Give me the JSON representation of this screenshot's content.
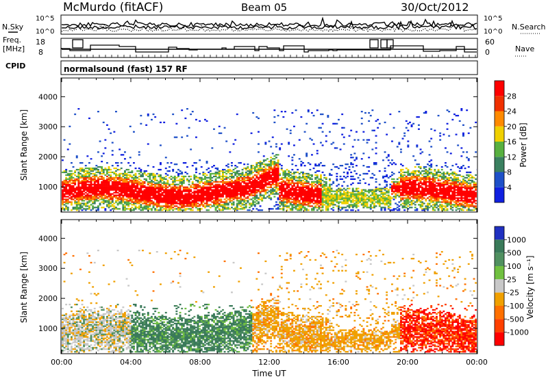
{
  "header": {
    "station": "McMurdo (fitACF)",
    "beam": "Beam 05",
    "date": "30/Oct/2012"
  },
  "top_panels": {
    "nsky_label": "N.Sky",
    "nsky_tick_hi": "10^5",
    "nsky_tick_lo": "10^0",
    "nsearch_label": "N.Search",
    "nsearch_tick_hi": "10^5",
    "nsearch_tick_lo": "10^0",
    "freq_label_1": "Freq.",
    "freq_label_2": "[MHz]",
    "freq_tick_hi": "18",
    "freq_tick_lo": "8",
    "nave_label": "Nave",
    "nave_tick_hi": "60",
    "nave_tick_lo": "0",
    "cpid_label": "CPID",
    "cpid_text": "normalsound (fast) 157 RF"
  },
  "chart_data": [
    {
      "type": "heatmap",
      "title": "",
      "ylabel": "Slant Range [km]",
      "xlabel": "",
      "ylim": [
        180,
        4600
      ],
      "yticks": [
        1000,
        2000,
        3000,
        4000
      ],
      "xlim_hours": [
        0,
        24
      ],
      "colorbar": {
        "label": "Power [dB]",
        "ticks": [
          "4",
          "8",
          "12",
          "16",
          "20",
          "24",
          "28"
        ],
        "colors": [
          "#1020e0",
          "#1e50c8",
          "#3a8060",
          "#58b040",
          "#f0d000",
          "#ff8a00",
          "#f03000",
          "#ff0000"
        ]
      }
    },
    {
      "type": "heatmap",
      "title": "",
      "ylabel": "Slant Range [km]",
      "xlabel": "Time UT",
      "ylim": [
        180,
        4600
      ],
      "yticks": [
        1000,
        2000,
        3000,
        4000
      ],
      "xlim_hours": [
        0,
        24
      ],
      "xticks": [
        "00:00",
        "04:00",
        "08:00",
        "12:00",
        "16:00",
        "20:00",
        "00:00"
      ],
      "colorbar": {
        "label": "Velocity [m s⁻¹]",
        "ticks": [
          "1000",
          "500",
          "100",
          "25",
          "-25",
          "-100",
          "-500",
          "-1000"
        ],
        "colors": [
          "#2030c0",
          "#3a7a5a",
          "#509060",
          "#70c040",
          "#c8c8c8",
          "#f0a000",
          "#ff7000",
          "#ff4000",
          "#ff0000"
        ]
      }
    }
  ]
}
